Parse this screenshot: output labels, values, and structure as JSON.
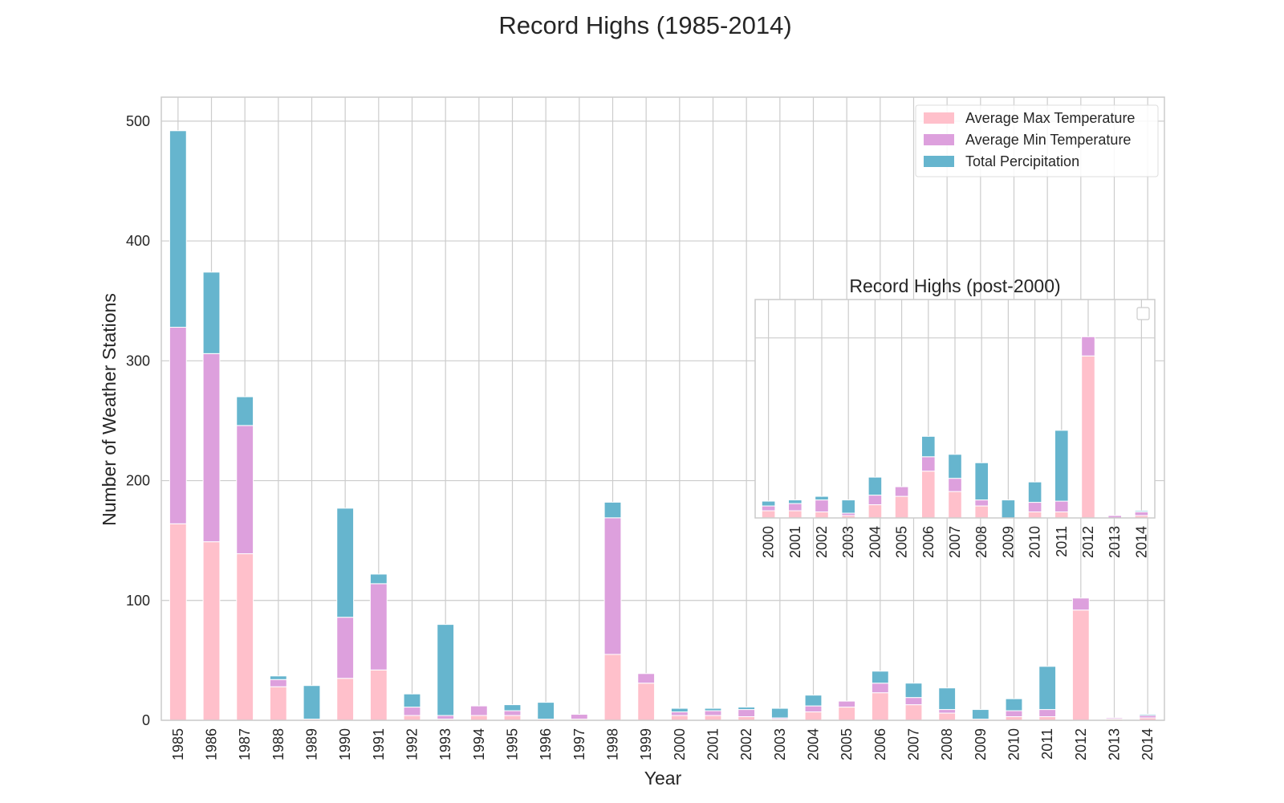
{
  "chart_data": [
    {
      "type": "bar",
      "stacked": true,
      "title": "Record Highs (1985-2014)",
      "xlabel": "Year",
      "ylabel": "Number of Weather Stations",
      "ylim": [
        0,
        520
      ],
      "yticks": [
        0,
        100,
        200,
        300,
        400,
        500
      ],
      "grid": true,
      "legend_position": "top-right",
      "categories": [
        "1985",
        "1986",
        "1987",
        "1988",
        "1989",
        "1990",
        "1991",
        "1992",
        "1993",
        "1994",
        "1995",
        "1996",
        "1997",
        "1998",
        "1999",
        "2000",
        "2001",
        "2002",
        "2003",
        "2004",
        "2005",
        "2006",
        "2007",
        "2008",
        "2009",
        "2010",
        "2011",
        "2012",
        "2013",
        "2014"
      ],
      "series": [
        {
          "name": "Average Max Temperature",
          "color": "#FFC0CB",
          "values": [
            164,
            149,
            139,
            28,
            1,
            35,
            42,
            4,
            1,
            4,
            4,
            1,
            1,
            55,
            31,
            4,
            4,
            3,
            1,
            7,
            11,
            23,
            13,
            6,
            1,
            3,
            3,
            92,
            1,
            2
          ]
        },
        {
          "name": "Average Min Temperature",
          "color": "#DDA0DD",
          "values": [
            164,
            157,
            107,
            6,
            0,
            51,
            72,
            7,
            3,
            8,
            4,
            0,
            4,
            114,
            8,
            3,
            4,
            6,
            1,
            5,
            5,
            8,
            6,
            3,
            0,
            5,
            6,
            10,
            1,
            2
          ]
        },
        {
          "name": "Total Percipitation",
          "color": "#66B5CE",
          "values": [
            164,
            68,
            24,
            3,
            28,
            91,
            8,
            11,
            76,
            0,
            5,
            14,
            0,
            13,
            0,
            3,
            2,
            2,
            8,
            9,
            0,
            10,
            12,
            18,
            8,
            10,
            36,
            0,
            0,
            1
          ]
        }
      ]
    },
    {
      "type": "bar",
      "stacked": true,
      "title": "Record Highs (post-2000)",
      "ylim": [
        0,
        182
      ],
      "grid": true,
      "legend_position": "top-right",
      "legend_empty": true,
      "categories": [
        "2000",
        "2001",
        "2002",
        "2003",
        "2004",
        "2005",
        "2006",
        "2007",
        "2008",
        "2009",
        "2010",
        "2011",
        "2012",
        "2013",
        "2014"
      ],
      "series": [
        {
          "color": "#FFC0CB",
          "values": [
            6,
            6,
            5,
            2,
            11,
            18,
            39,
            22,
            10,
            0,
            5,
            5,
            135,
            0,
            2
          ]
        },
        {
          "color": "#DDA0DD",
          "values": [
            4,
            6,
            10,
            2,
            8,
            8,
            12,
            11,
            5,
            0,
            8,
            9,
            16,
            2,
            3
          ]
        },
        {
          "color": "#66B5CE",
          "values": [
            4,
            3,
            3,
            11,
            15,
            0,
            17,
            20,
            31,
            15,
            17,
            59,
            0,
            0,
            1
          ]
        }
      ]
    }
  ]
}
